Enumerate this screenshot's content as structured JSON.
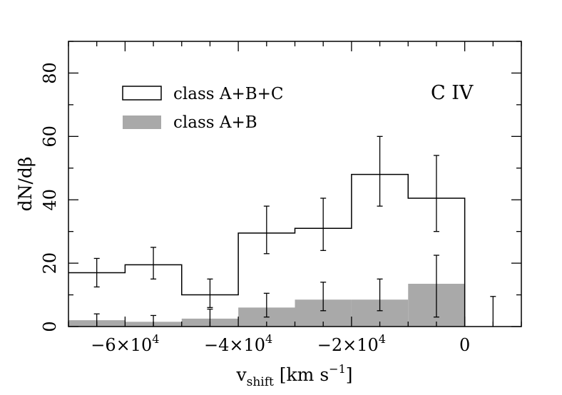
{
  "chart_data": {
    "type": "histogram",
    "xlabel_main": "v",
    "xlabel_sub": "shift",
    "xlabel_units": "[km s",
    "xlabel_exp": "−1",
    "xlabel_close": "]",
    "ylabel": "dN/dβ",
    "xlim": [
      -70000,
      10000
    ],
    "ylim": [
      0,
      90
    ],
    "annotation": "C  IV",
    "x_major_ticks": [
      -60000,
      -40000,
      -20000,
      0
    ],
    "x_tick_labels": [
      "−6×10",
      "−4×10",
      "−2×10",
      "0"
    ],
    "x_tick_exponents": [
      "4",
      "4",
      "4",
      ""
    ],
    "y_major_ticks": [
      0,
      20,
      40,
      60,
      80
    ],
    "y_tick_labels": [
      "0",
      "20",
      "40",
      "60",
      "80"
    ],
    "bin_edges": [
      -70000,
      -60000,
      -50000,
      -40000,
      -30000,
      -20000,
      -10000,
      0
    ],
    "series": [
      {
        "name": "class A+B+C",
        "style": "step-outline",
        "values": [
          17,
          19.5,
          10,
          29.5,
          31,
          48,
          40.5
        ],
        "errors": [
          [
            12.5,
            21.5
          ],
          [
            15,
            25
          ],
          [
            6,
            15
          ],
          [
            23,
            38
          ],
          [
            24,
            40.5
          ],
          [
            38,
            60
          ],
          [
            30,
            54
          ]
        ]
      },
      {
        "name": "class A+B",
        "style": "filled",
        "color": "#a9a9a9",
        "values": [
          2,
          1.5,
          2.5,
          6,
          8.5,
          8.5,
          13.5
        ],
        "errors": [
          [
            0,
            4
          ],
          [
            0,
            3.5
          ],
          [
            0,
            5.5
          ],
          [
            3,
            10.5
          ],
          [
            5,
            14
          ],
          [
            5,
            15
          ],
          [
            3,
            22.5
          ]
        ]
      }
    ],
    "extra_errorbar": {
      "x": 5000,
      "y": 0,
      "low": 0,
      "high": 9.5
    }
  }
}
